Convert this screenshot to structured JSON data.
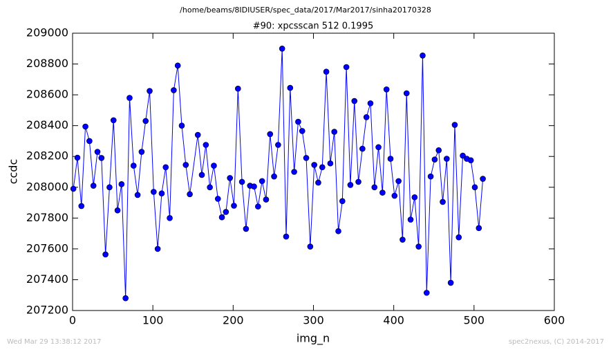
{
  "chart_data": {
    "type": "line",
    "suptitle": "/home/beams/8IDIUSER/spec_data/2017/Mar2017/sinha20170328",
    "title": "#90: xpcsscan 512 0.1995",
    "xlabel": "img_n",
    "ylabel": "ccdc",
    "footer_left": "Wed Mar 29 13:38:12 2017",
    "footer_right": "spec2nexus, (C) 2014-2017",
    "x": [
      1,
      6,
      11,
      16,
      21,
      26,
      31,
      36,
      41,
      46,
      51,
      56,
      61,
      66,
      71,
      76,
      81,
      86,
      91,
      96,
      101,
      106,
      111,
      116,
      121,
      126,
      131,
      136,
      141,
      146,
      156,
      161,
      166,
      171,
      176,
      181,
      186,
      191,
      196,
      201,
      206,
      211,
      216,
      221,
      226,
      231,
      236,
      241,
      246,
      251,
      256,
      261,
      266,
      271,
      276,
      281,
      286,
      291,
      296,
      301,
      306,
      311,
      316,
      321,
      326,
      331,
      336,
      341,
      346,
      351,
      356,
      361,
      366,
      371,
      376,
      381,
      386,
      391,
      396,
      401,
      406,
      411,
      416,
      421,
      426,
      431,
      436,
      441,
      446,
      451,
      456,
      461,
      466,
      471,
      476,
      481,
      486,
      491,
      496,
      501,
      506,
      511
    ],
    "series": [
      {
        "name": "ccdc",
        "color": "#0000ff",
        "values": [
          207990,
          208192,
          207878,
          208394,
          208300,
          208010,
          208230,
          208190,
          207564,
          208000,
          208435,
          207850,
          208020,
          207280,
          208580,
          208140,
          207950,
          208230,
          208430,
          208625,
          207970,
          207600,
          207960,
          208130,
          207800,
          208630,
          208790,
          208400,
          208145,
          207955,
          208340,
          208080,
          208275,
          208000,
          208140,
          207925,
          207805,
          207840,
          208060,
          207880,
          208640,
          208035,
          207730,
          208010,
          208005,
          207875,
          208040,
          207920,
          208345,
          208070,
          208275,
          208900,
          207680,
          208645,
          208100,
          208425,
          208365,
          208190,
          207615,
          208145,
          208030,
          208130,
          208750,
          208155,
          208360,
          207715,
          207910,
          208780,
          208015,
          208560,
          208035,
          208250,
          208455,
          208545,
          208000,
          208260,
          207965,
          208635,
          208185,
          207945,
          208040,
          207660,
          208610,
          207790,
          207935,
          207615,
          208855,
          207315,
          208070,
          208180,
          208240,
          207905,
          208185,
          207380,
          208405,
          207675,
          208205,
          208185,
          208175,
          208000,
          207735,
          208055
        ]
      }
    ],
    "xlim": [
      0,
      600
    ],
    "xticks": [
      0,
      100,
      200,
      300,
      400,
      500,
      600
    ],
    "ylim": [
      207200,
      209000
    ],
    "yticks": [
      207200,
      207400,
      207600,
      207800,
      208000,
      208200,
      208400,
      208600,
      208800,
      209000
    ],
    "grid": false
  }
}
